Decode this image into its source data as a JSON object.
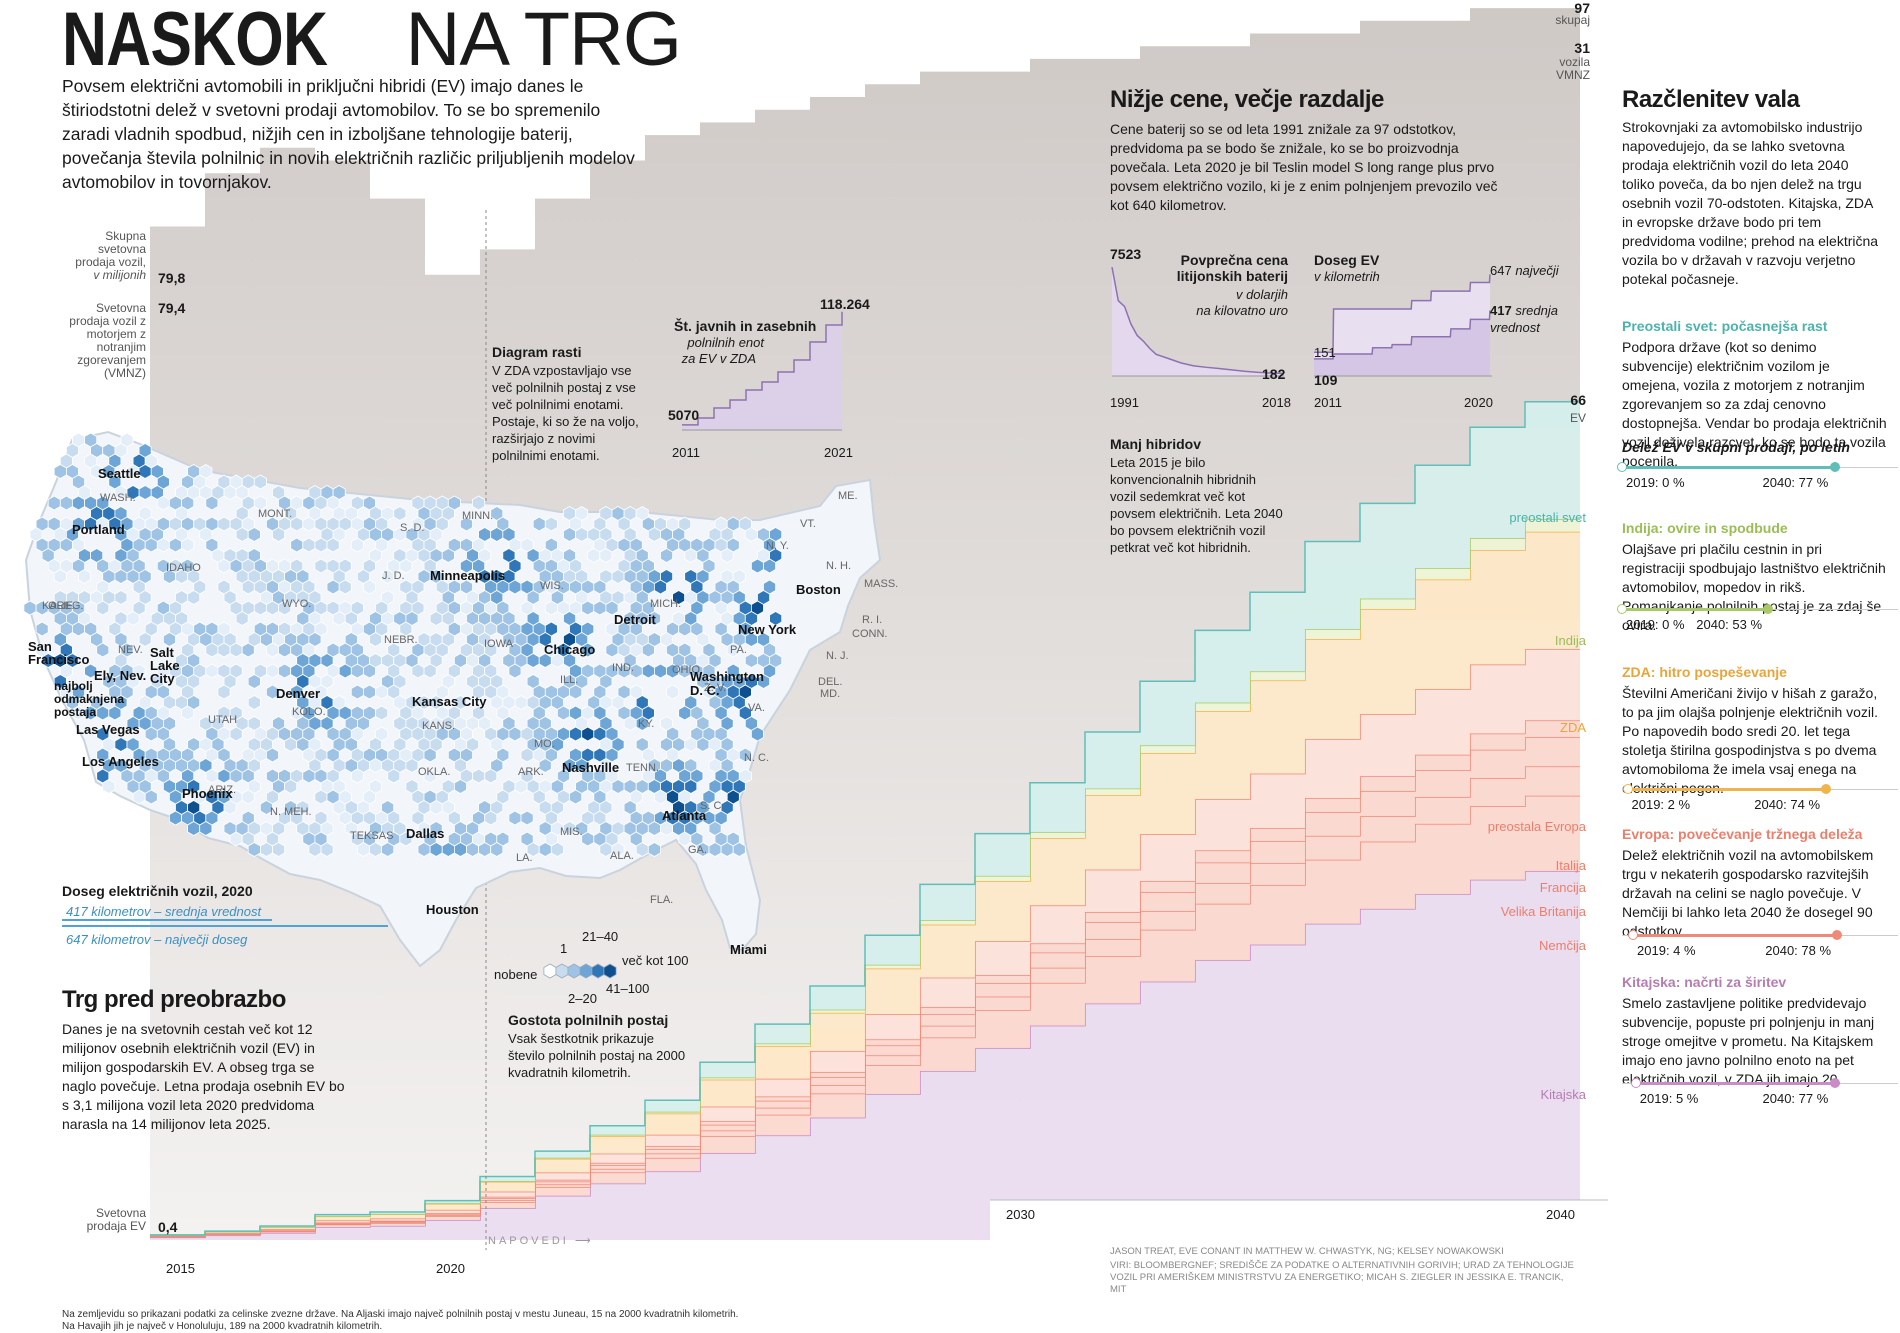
{
  "title": {
    "bold": "NASKOK",
    "light": "NA TRG"
  },
  "lead": "Povsem električni avtomobili in priključni hibridi (EV) imajo danes le štiriodstotni delež v svetovni prodaji avtomobilov. To se bo spremenilo zaradi vladnih spodbud, nižjih cen in izboljšane tehnologije baterij, povečanja števila polnilnic in novih električnih različic priljubljenih modelov avtomobilov in tovornjakov.",
  "left_labels": {
    "total": "Skupna svetovna prodaja vozil,",
    "total_unit": "v milijonih",
    "total_val": "79,8",
    "ice": "Svetovna prodaja vozil z motorjem z notranjim zgorevanjem (VMNZ)",
    "ice_val": "79,4",
    "ev": "Svetovna prodaja EV",
    "ev_val": "0,4"
  },
  "top_right": {
    "total_val": "97",
    "total_lbl": "skupaj",
    "ice_val": "31",
    "ice_lbl1": "vozila",
    "ice_lbl2": "VMNZ",
    "ev_val": "66",
    "ev_lbl": "EV"
  },
  "diagram": {
    "title": "Diagram rasti",
    "text": "V ZDA vzpostavljajo vse več polnilnih postaj z vse več polnilnimi enotami. Postaje, ki so že na voljo, razširjajo z novimi polnilnimi enotami."
  },
  "chargers": {
    "title": "Št. javnih in zasebnih",
    "sub1": "polnilnih enot",
    "sub2": "za EV v ZDA",
    "start_val": "5070",
    "end_val": "118.264",
    "x_start": "2011",
    "x_end": "2021"
  },
  "cheaper": {
    "title": "Nižje cene, večje razdalje",
    "text": "Cene baterij so se od leta 1991 znižale za 97 odstotkov, predvidoma pa se bodo še znižale, ko se bo proizvodnja povečala. Leta 2020 je bil Teslin model S long range plus prvo povsem električno vozilo, ki je z enim polnjenjem prevozilo več kot 640 kilometrov."
  },
  "battery": {
    "title1": "Povprečna cena",
    "title2": "litijonskih baterij",
    "sub1": "v dolarjih",
    "sub2": "na kilovatno uro",
    "start_val": "7523",
    "end_val": "182",
    "x_start": "1991",
    "x_end": "2018"
  },
  "range": {
    "title": "Doseg EV",
    "sub": "v kilometrih",
    "max_val": "647",
    "max_lbl": "največji",
    "avg_val": "417",
    "avg_lbl1": "srednja",
    "avg_lbl2": "vrednost",
    "start_max": "151",
    "start_avg": "109",
    "x_start": "2011",
    "x_end": "2020"
  },
  "hybrids": {
    "title": "Manj hibridov",
    "text": "Leta 2015 je bilo konvencionalnih hibridnih vozil sedemkrat več kot povsem električnih. Leta 2040 bo povsem električnih vozil petkrat več kot hibridnih."
  },
  "map_legend": {
    "range_title": "Doseg električnih vozil, 2020",
    "range_avg": "417 kilometrov – srednja vrednost",
    "range_max": "647 kilometrov – največji doseg",
    "density_title": "Gostota polnilnih postaj",
    "density_text": "Vsak šestkotnik prikazuje število polnilnih postaj na 2000 kvadratnih kilometrih.",
    "bins": [
      "nobene",
      "1",
      "2–20",
      "21–40",
      "41–100",
      "več kot 100"
    ]
  },
  "market": {
    "title": "Trg pred preobrazbo",
    "text": "Danes je na svetovnih cestah več kot 12 milijonov osebnih električnih vozil (EV) in milijon gospodarskih EV. A obseg trga se naglo povečuje. Letna prodaja osebnih EV bo s 3,1 milijona vozil leta 2020 predvidoma narasla na 14 milijonov leta 2025."
  },
  "axis": {
    "x2015": "2015",
    "x2020": "2020",
    "forecast": "NAPOVEDI",
    "x2030": "2030",
    "x2040": "2040"
  },
  "regions": [
    "preostali svet",
    "Indija",
    "ZDA",
    "preostala Evropa",
    "Italija",
    "Francija",
    "Velika Britanija",
    "Nemčija",
    "Kitajska"
  ],
  "breakdown": {
    "title": "Razčlenitev vala",
    "text": "Strokovnjaki za avtomobilsko industrijo napovedujejo, da se lahko svetovna prodaja električnih vozil do leta 2040 toliko poveča, da bo njen delež na trgu osebnih vozil 70-odstoten. Kitajska, ZDA in evropske države bodo pri tem predvidoma vodilne; prehod na električna vozila bo v državah v razvoju verjetno potekal počasneje.",
    "items": [
      {
        "title": "Preostali svet: počasnejša rast",
        "text": "Podpora države (kot so denimo subvencije) električnim vozilom je omejena, vozila z motorjem z notranjim zgorevanjem so za zdaj cenovno dostopnejša. Vendar bo prodaja električnih vozil doživela razcvet, ko se bodo ta vozila pocenila.",
        "share_lbl": "Delež EV v skupni prodaji, po letih",
        "y1": "2019: 0 %",
        "y2": "2040: 77 %",
        "v1": 0,
        "v2": 77,
        "color": "#5fbfb8"
      },
      {
        "title": "Indija: ovire in spodbude",
        "text": "Olajšave pri plačilu cestnin in pri registraciji spodbujajo lastništvo električnih avtomobilov, mopedov in rikš. Pomanjkanje polnilnih postaj je za zdaj še ovira.",
        "y1": "2019: 0 %",
        "y2": "2040: 53 %",
        "v1": 0,
        "v2": 53,
        "color": "#a9c96a"
      },
      {
        "title": "ZDA: hitro pospeševanje",
        "text": "Številni Američani živijo v hišah z garažo, to pa jim olajša polnjenje električnih vozil. Po napovedih bodo sredi 20. let tega stoletja štirilna gospodinjstva s po dvema avtomobiloma že imela vsaj enega na električni pogon.",
        "y1": "2019: 2 %",
        "y2": "2040: 74 %",
        "v1": 2,
        "v2": 74,
        "color": "#f0b44c"
      },
      {
        "title": "Evropa: povečevanje tržnega deleža",
        "text": "Delež električnih vozil na avtomobilskem trgu v nekaterih gospodarsko razvitejših državah na celini se naglo povečuje. V Nemčiji bi lahko leta 2040 že dosegel 90 odstotkov.",
        "y1": "2019: 4 %",
        "y2": "2040: 78 %",
        "v1": 4,
        "v2": 78,
        "color": "#f08a78"
      },
      {
        "title": "Kitajska: načrti za širitev",
        "text": "Smelo zastavljene politike predvidevajo subvencije, popuste pri polnjenju in manj stroge omejitve v prometu. Na Kitajskem imajo eno javno polnilno enoto na pet električnih vozil, v ZDA jih imajo 20.",
        "y1": "2019: 5 %",
        "y2": "2040: 77 %",
        "v1": 5,
        "v2": 77,
        "color": "#c98cc6"
      }
    ]
  },
  "map_states": [
    "WASH.",
    "MONT.",
    "S. D.",
    "MINN.",
    "ME.",
    "VT.",
    "N. H.",
    "MASS.",
    "R. I.",
    "CONN.",
    "N. Y.",
    "IDAHO",
    "OREG.",
    "WYO.",
    "J. D.",
    "WIS.",
    "MICH.",
    "PA.",
    "N. J.",
    "DEL.",
    "MD.",
    "KALIF.",
    "NEV.",
    "NEBR.",
    "IOWA",
    "ILL.",
    "IND.",
    "OHIO",
    "Z. V.",
    "VA.",
    "UTAH",
    "KOLO.",
    "KANS.",
    "MO.",
    "KY.",
    "N. C.",
    "ARIZ.",
    "N. MEH.",
    "OKLA.",
    "ARK.",
    "TENN.",
    "S. C.",
    "TEKSAS",
    "LA.",
    "MIS.",
    "ALA.",
    "GA.",
    "FLA."
  ],
  "map_cities": [
    "Seattle",
    "Portland",
    "San Francisco",
    "Ely, Nev.",
    "najbolj odmaknjena postaja",
    "Salt Lake City",
    "Las Vegas",
    "Los Angeles",
    "Phoenix",
    "Denver",
    "Minneapolis",
    "Chicago",
    "Kansas City",
    "Dallas",
    "Houston",
    "Nashville",
    "Atlanta",
    "Miami",
    "Detroit",
    "Boston",
    "New York",
    "Washington D. C."
  ],
  "credits": "JASON TREAT, EVE CONANT IN MATTHEW W. CHWASTYK, NG; KELSEY NOWAKOWSKI",
  "sources": "VIRI: BLOOMBERGNEF; SREDIŠČE ZA PODATKE O ALTERNATIVNIH GORIVIH; URAD ZA TEHNOLOGIJE VOZIL PRI AMERIŠKEM MINISTRSTVU ZA ENERGETIKO; MICAH S. ZIEGLER IN JESSIKA E. TRANCIK, MIT",
  "footnote1": "Na zemljevidu so prikazani podatki za celinske zvezne države. Na Aljaski imajo največ polnilnih postaj v mestu Juneau, 15 na 2000 kvadratnih kilometrih.",
  "footnote2": "Na Havajih jih je največ v Honoluluju, 189 na 2000 kvadratnih kilometrih.",
  "chart_data": [
    {
      "type": "area",
      "title": "",
      "x": [
        2015,
        2016,
        2017,
        2018,
        2019,
        2020,
        2021,
        2022,
        2023,
        2024,
        2025,
        2026,
        2027,
        2028,
        2029,
        2030,
        2031,
        2032,
        2033,
        2034,
        2035,
        2036,
        2037,
        2038,
        2039,
        2040
      ],
      "total": [
        79.8,
        84,
        86,
        85,
        82,
        76,
        78,
        82,
        85,
        87,
        88,
        89,
        90,
        91,
        92,
        92,
        93,
        93,
        94,
        94,
        95,
        95,
        96,
        96,
        97,
        97
      ],
      "ev": [
        0.4,
        0.7,
        1.1,
        2.0,
        2.2,
        3.1,
        5,
        7,
        9,
        11,
        14,
        17,
        20,
        24,
        28,
        32,
        36,
        40,
        44,
        48,
        51,
        55,
        58,
        61,
        64,
        66
      ],
      "ylabel": "",
      "series": [
        "Kitajska",
        "Nemčija",
        "Velika Britanija",
        "Francija",
        "Italija",
        "preostala Evropa",
        "ZDA",
        "Indija",
        "preostali svet"
      ]
    },
    {
      "type": "line",
      "title": "Št. javnih in zasebnih polnilnih enot za EV v ZDA",
      "x": [
        2011,
        2012,
        2013,
        2014,
        2015,
        2016,
        2017,
        2018,
        2019,
        2020,
        2021
      ],
      "values": [
        5070,
        12000,
        22000,
        30000,
        40000,
        48000,
        58000,
        70000,
        88000,
        105000,
        118264
      ]
    },
    {
      "type": "line",
      "title": "Povprečna cena litijonskih baterij",
      "x": [
        1991,
        1995,
        2000,
        2005,
        2010,
        2015,
        2018
      ],
      "values": [
        7523,
        2800,
        1200,
        600,
        400,
        250,
        182
      ]
    },
    {
      "type": "line",
      "title": "Doseg EV",
      "x": [
        2011,
        2012,
        2013,
        2014,
        2015,
        2016,
        2017,
        2018,
        2019,
        2020
      ],
      "series": [
        {
          "name": "največji",
          "values": [
            151,
            426,
            426,
            426,
            426,
            480,
            540,
            540,
            595,
            647
          ]
        },
        {
          "name": "srednja vrednost",
          "values": [
            109,
            140,
            140,
            180,
            200,
            250,
            250,
            300,
            360,
            417
          ]
        }
      ]
    }
  ]
}
